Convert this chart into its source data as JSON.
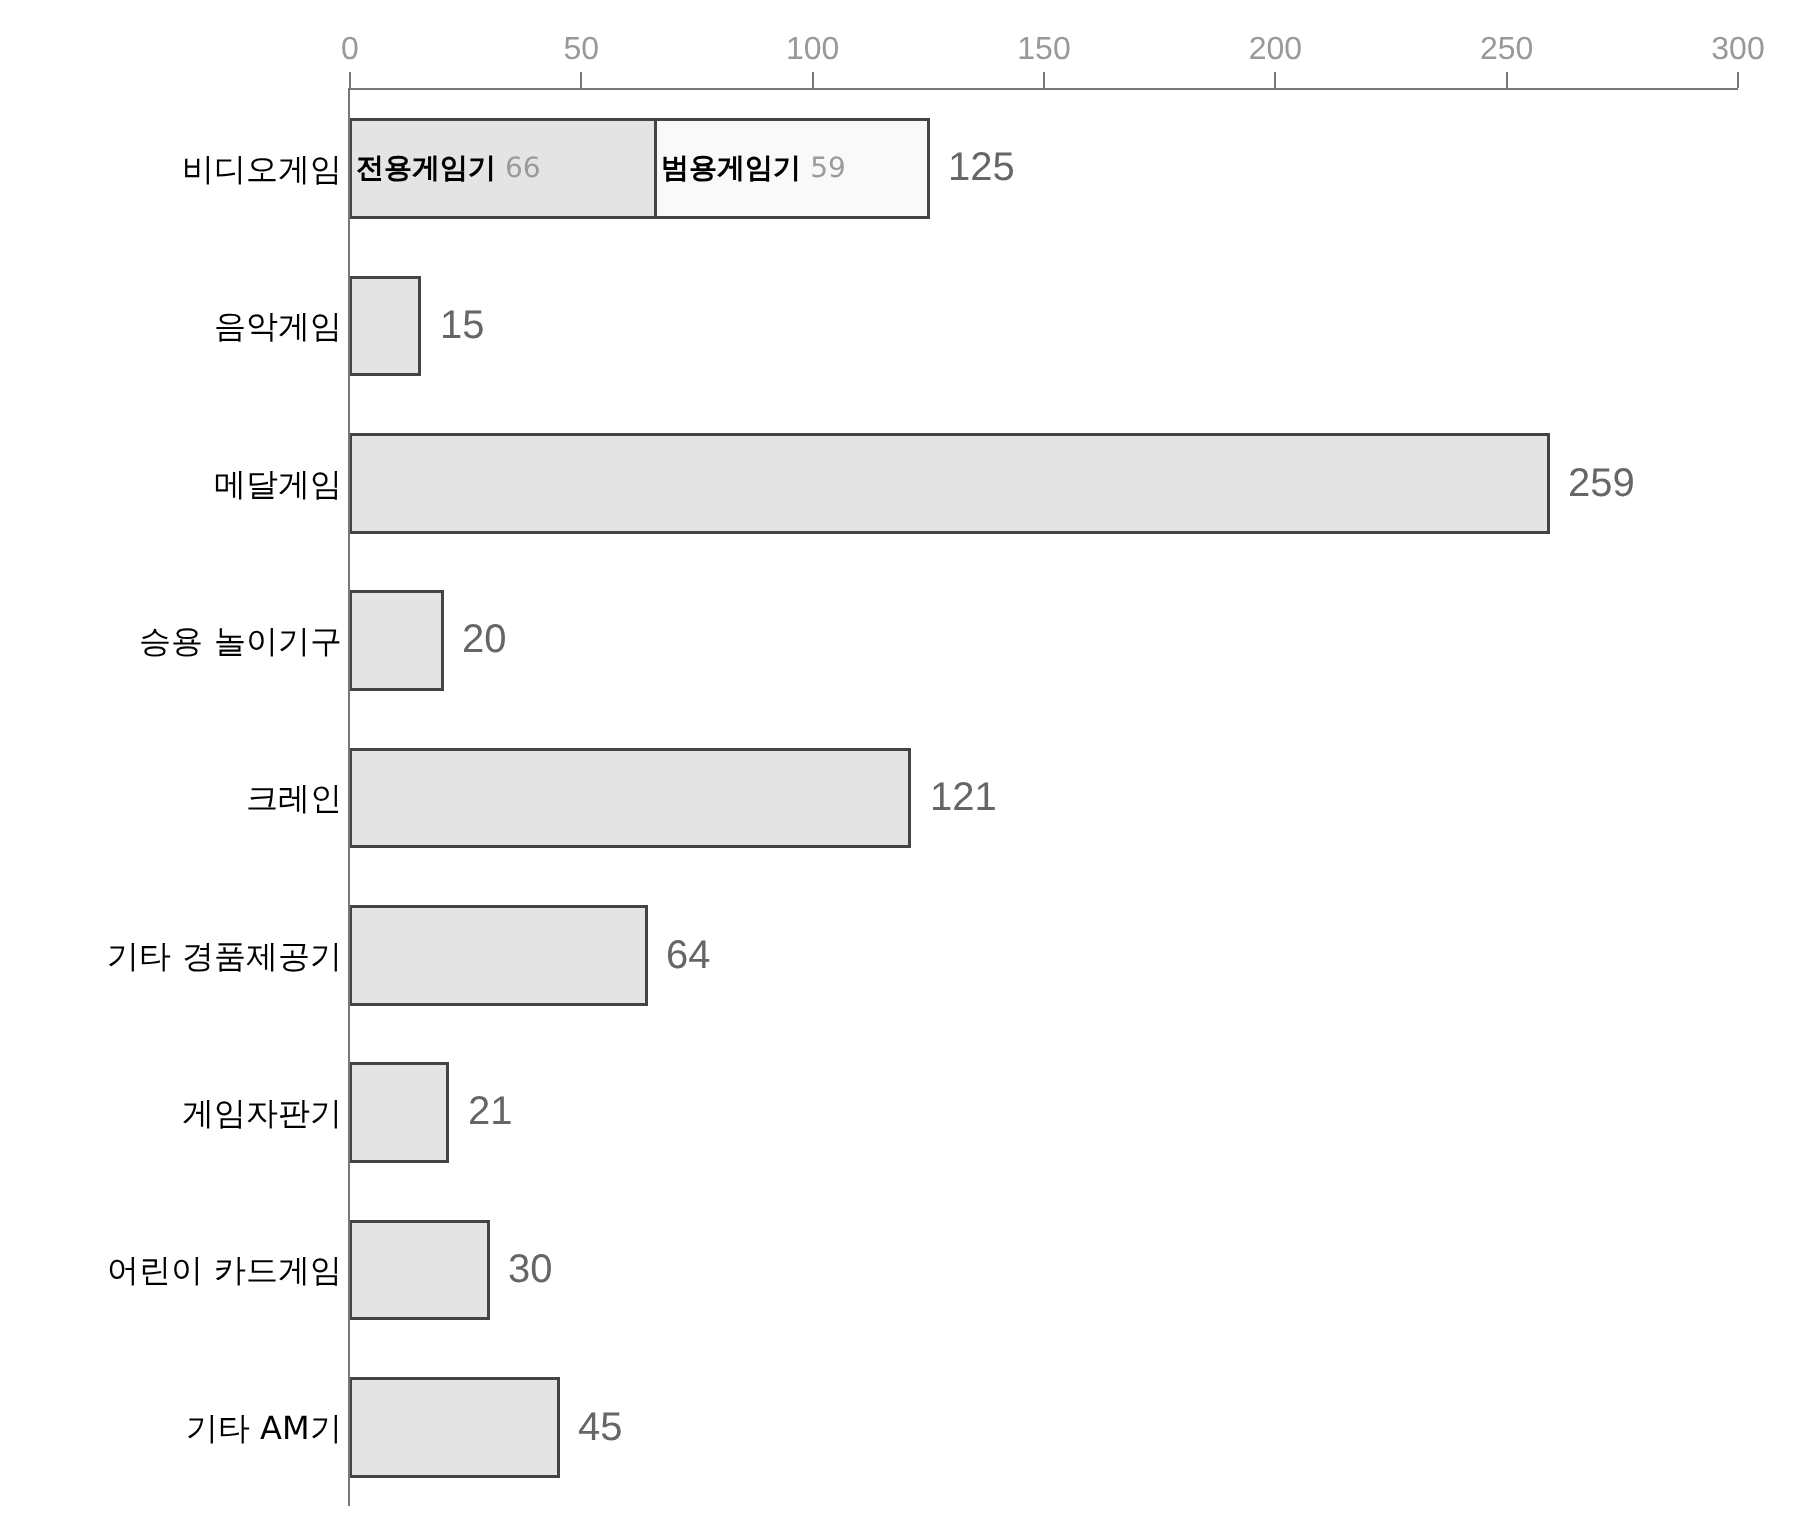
{
  "chart_data": {
    "type": "bar",
    "orientation": "horizontal",
    "stacked": true,
    "categories": [
      "비디오게임",
      "음악게임",
      "메달게임",
      "승용 놀이기구",
      "크레인",
      "기타 경품제공기",
      "게임자판기",
      "어린이 카드게임",
      "기타 AM기"
    ],
    "series": [
      {
        "name": "전용게임기",
        "color": "#e4e4e4",
        "values": [
          66,
          15,
          259,
          20,
          121,
          64,
          21,
          30,
          45
        ],
        "value_labels": [
          "66",
          null,
          null,
          null,
          null,
          null,
          null,
          null,
          null
        ]
      },
      {
        "name": "범용게임기",
        "color": "#f9f9f9",
        "values": [
          59,
          null,
          null,
          null,
          null,
          null,
          null,
          null,
          null
        ],
        "value_labels": [
          "59",
          null,
          null,
          null,
          null,
          null,
          null,
          null,
          null
        ]
      }
    ],
    "totals": [
      "125",
      "15",
      "259",
      "20",
      "121",
      "64",
      "21",
      "30",
      "45"
    ],
    "xlim": [
      0,
      300
    ],
    "xticks": [
      0,
      50,
      100,
      150,
      200,
      250,
      300
    ],
    "legend": false
  }
}
